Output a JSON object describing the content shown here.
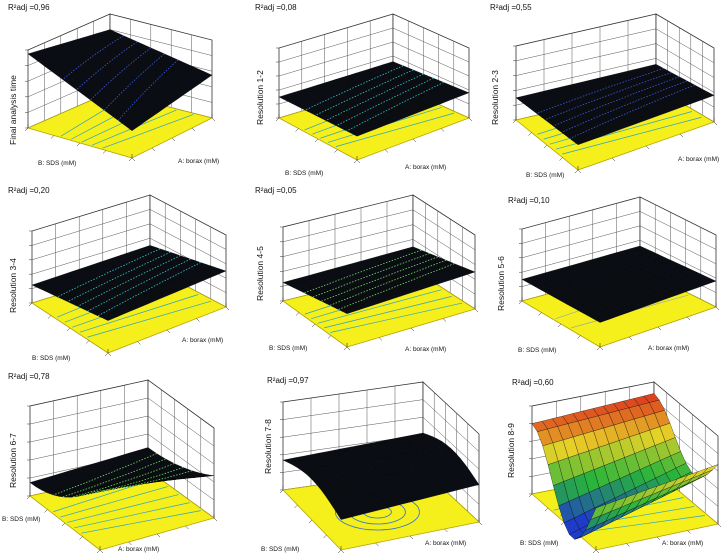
{
  "chart_data": [
    {
      "type": "surface",
      "r2": "R²adj =0,96",
      "zlabel": "Final analysis time",
      "xlabel": "A: borax (mM)",
      "ylabel": "B: SDS (mM)",
      "surface": "fat",
      "tint": "blue",
      "contour": "lines"
    },
    {
      "type": "surface",
      "r2": "R²adj =0,08",
      "zlabel": "Resolution 1-2",
      "xlabel": "A: borax (mM)",
      "ylabel": "B: SDS (mM)",
      "surface": "flat",
      "tint": "cyan",
      "contour": "lines"
    },
    {
      "type": "surface",
      "r2": "R²adj =0,55",
      "zlabel": "Resolution 2-3",
      "xlabel": "A: borax (mM)",
      "ylabel": "B: SDS (mM)",
      "surface": "flat",
      "tint": "blue",
      "contour": "lines"
    },
    {
      "type": "surface",
      "r2": "R²adj =0,20",
      "zlabel": "Resolution 3-4",
      "xlabel": "A: borax (mM)",
      "ylabel": "B: SDS (mM)",
      "surface": "tilt",
      "tint": "cyan",
      "contour": "lines"
    },
    {
      "type": "surface",
      "r2": "R²adj =0,05",
      "zlabel": "Resolution 4-5",
      "xlabel": "A: borax (mM)",
      "ylabel": "B: SDS (mM)",
      "surface": "tilt",
      "tint": "green",
      "contour": "lines"
    },
    {
      "type": "surface",
      "r2": "R²adj =0,10",
      "zlabel": "Resolution 5-6",
      "xlabel": "A: borax (mM)",
      "ylabel": "B: SDS (mM)",
      "surface": "flat",
      "tint": "none",
      "contour": "sparse"
    },
    {
      "type": "surface",
      "r2": "R²adj =0,78",
      "zlabel": "Resolution 6-7",
      "xlabel": "A: borax (mM)",
      "ylabel": "B: SDS (mM)",
      "surface": "saddle",
      "tint": "green",
      "contour": "lines"
    },
    {
      "type": "surface",
      "r2": "R²adj =0,97",
      "zlabel": "Resolution 7-8",
      "xlabel": "A: borax (mM)",
      "ylabel": "B: SDS (mM)",
      "surface": "ridge",
      "tint": "none",
      "contour": "ellipse"
    },
    {
      "type": "surface",
      "r2": "R²adj =0,60",
      "zlabel": "Resolution 8-9",
      "xlabel": "A: borax (mM)",
      "ylabel": "B: SDS (mM)",
      "surface": "wave",
      "tint": "rainbow",
      "contour": "lines"
    }
  ],
  "colors": {
    "floor": "#f5ef1c",
    "floor_edge": "#b8a400",
    "surface": "#0b0d14",
    "grid": "#555555"
  }
}
